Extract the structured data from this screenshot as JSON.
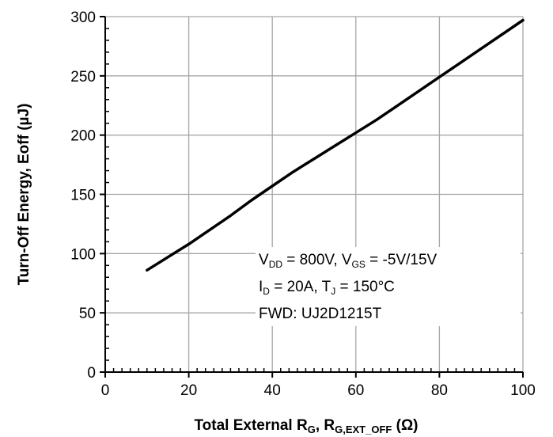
{
  "chart_data": {
    "type": "line",
    "title": "",
    "xlabel": {
      "main": "Total External R",
      "sub1": "G",
      "sep": ", R",
      "sub2": "G,EXT_OFF",
      "unit": " (Ω)"
    },
    "ylabel": "Turn-Off Energy, Eoff (µJ)",
    "xlim": [
      0,
      100
    ],
    "ylim": [
      0,
      300
    ],
    "x_ticks": [
      0,
      20,
      40,
      60,
      80,
      100
    ],
    "y_ticks": [
      0,
      50,
      100,
      150,
      200,
      250,
      300
    ],
    "grid": true,
    "series": [
      {
        "x": [
          10,
          15,
          20,
          25,
          30,
          35,
          40,
          45,
          50,
          55,
          60,
          65,
          70,
          75,
          80,
          85,
          90,
          95,
          100
        ],
        "y": [
          86,
          97,
          108,
          120,
          132,
          145,
          157,
          169,
          180,
          191,
          202,
          213,
          225,
          237,
          249,
          261,
          273,
          285,
          297
        ]
      }
    ],
    "annotations": [
      {
        "parts": [
          [
            "V",
            ""
          ],
          [
            "DD",
            "sub"
          ],
          [
            " = 800V, V",
            ""
          ],
          [
            "GS",
            "sub"
          ],
          [
            " = -5V/15V",
            ""
          ]
        ]
      },
      {
        "parts": [
          [
            "I",
            ""
          ],
          [
            "D",
            "sub"
          ],
          [
            " = 20A, T",
            ""
          ],
          [
            "J",
            "sub"
          ],
          [
            " = 150°C",
            ""
          ]
        ]
      },
      {
        "parts": [
          [
            "FWD: UJ2D1215T",
            ""
          ]
        ]
      }
    ]
  }
}
